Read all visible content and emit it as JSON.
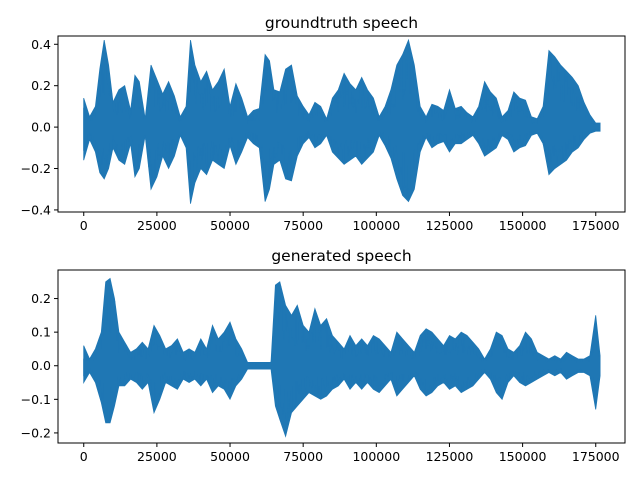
{
  "chart_data": [
    {
      "type": "line",
      "title": "groundtruth speech",
      "xlabel": "",
      "ylabel": "",
      "xlim": [
        -8800,
        185000
      ],
      "ylim": [
        -0.41,
        0.44
      ],
      "x_ticks": [
        0,
        25000,
        50000,
        75000,
        100000,
        125000,
        150000,
        175000
      ],
      "x_tick_labels": [
        "0",
        "25000",
        "50000",
        "75000",
        "100000",
        "125000",
        "150000",
        "175000"
      ],
      "y_ticks": [
        -0.4,
        -0.2,
        0.0,
        0.2,
        0.4
      ],
      "y_tick_labels": [
        "−0.4",
        "−0.2",
        "0.0",
        "0.2",
        "0.4"
      ],
      "grid": false,
      "color": "#1f77b4",
      "series": [
        {
          "x": [
            0,
            2000,
            4000,
            5500,
            7000,
            8500,
            10000,
            12000,
            14000,
            16000,
            17500,
            19000,
            21000,
            23000,
            25000,
            27000,
            29000,
            31000,
            33000,
            35000,
            36500,
            38000,
            40000,
            42000,
            44000,
            46000,
            48000,
            50000,
            52000,
            54000,
            56000,
            58000,
            60000,
            62000,
            63500,
            65000,
            67000,
            69000,
            71000,
            73000,
            75000,
            77000,
            79000,
            81000,
            83000,
            85000,
            87000,
            89000,
            91000,
            93000,
            95000,
            97000,
            99000,
            101000,
            103000,
            105000,
            107000,
            109000,
            111000,
            113000,
            115000,
            117000,
            119000,
            121000,
            123000,
            125000,
            127000,
            129000,
            131000,
            133000,
            135000,
            137000,
            139000,
            141000,
            143000,
            145000,
            147000,
            149000,
            151000,
            153000,
            155000,
            157000,
            159000,
            161000,
            163000,
            165000,
            167000,
            169000,
            171000,
            173000,
            175000,
            176500
          ],
          "upper": [
            0.14,
            0.05,
            0.1,
            0.28,
            0.42,
            0.3,
            0.12,
            0.18,
            0.2,
            0.08,
            0.25,
            0.22,
            0.04,
            0.3,
            0.23,
            0.16,
            0.22,
            0.15,
            0.05,
            0.1,
            0.42,
            0.3,
            0.22,
            0.27,
            0.18,
            0.22,
            0.28,
            0.1,
            0.21,
            0.14,
            0.05,
            0.08,
            0.09,
            0.35,
            0.32,
            0.18,
            0.17,
            0.28,
            0.3,
            0.15,
            0.1,
            0.06,
            0.12,
            0.1,
            0.04,
            0.14,
            0.18,
            0.26,
            0.21,
            0.18,
            0.24,
            0.18,
            0.14,
            0.05,
            0.1,
            0.18,
            0.3,
            0.35,
            0.42,
            0.3,
            0.1,
            0.05,
            0.11,
            0.1,
            0.08,
            0.18,
            0.09,
            0.1,
            0.07,
            0.05,
            0.1,
            0.22,
            0.17,
            0.14,
            0.05,
            0.08,
            0.17,
            0.14,
            0.13,
            0.05,
            0.04,
            0.1,
            0.37,
            0.34,
            0.3,
            0.27,
            0.24,
            0.2,
            0.12,
            0.06,
            0.02,
            0.02
          ],
          "lower": [
            -0.16,
            -0.06,
            -0.12,
            -0.22,
            -0.25,
            -0.2,
            -0.1,
            -0.16,
            -0.18,
            -0.08,
            -0.24,
            -0.2,
            -0.04,
            -0.3,
            -0.24,
            -0.14,
            -0.2,
            -0.14,
            -0.04,
            -0.1,
            -0.37,
            -0.27,
            -0.2,
            -0.23,
            -0.16,
            -0.18,
            -0.2,
            -0.09,
            -0.18,
            -0.12,
            -0.05,
            -0.08,
            -0.1,
            -0.36,
            -0.3,
            -0.18,
            -0.16,
            -0.25,
            -0.26,
            -0.14,
            -0.08,
            -0.05,
            -0.1,
            -0.08,
            -0.04,
            -0.12,
            -0.15,
            -0.18,
            -0.16,
            -0.14,
            -0.18,
            -0.15,
            -0.12,
            -0.04,
            -0.09,
            -0.15,
            -0.25,
            -0.33,
            -0.36,
            -0.3,
            -0.12,
            -0.05,
            -0.1,
            -0.08,
            -0.07,
            -0.12,
            -0.08,
            -0.08,
            -0.06,
            -0.04,
            -0.08,
            -0.14,
            -0.12,
            -0.1,
            -0.04,
            -0.06,
            -0.12,
            -0.1,
            -0.09,
            -0.04,
            -0.03,
            -0.08,
            -0.23,
            -0.2,
            -0.18,
            -0.16,
            -0.12,
            -0.1,
            -0.06,
            -0.03,
            -0.02,
            -0.02
          ]
        }
      ]
    },
    {
      "type": "line",
      "title": "generated speech",
      "xlabel": "",
      "ylabel": "",
      "xlim": [
        -8800,
        185000
      ],
      "ylim": [
        -0.23,
        0.285
      ],
      "x_ticks": [
        0,
        25000,
        50000,
        75000,
        100000,
        125000,
        150000,
        175000
      ],
      "x_tick_labels": [
        "0",
        "25000",
        "50000",
        "75000",
        "100000",
        "125000",
        "150000",
        "175000"
      ],
      "y_ticks": [
        -0.2,
        -0.1,
        0.0,
        0.1,
        0.2
      ],
      "y_tick_labels": [
        "−0.2",
        "−0.1",
        "0.0",
        "0.1",
        "0.2"
      ],
      "grid": false,
      "color": "#1f77b4",
      "series": [
        {
          "x": [
            0,
            2000,
            4000,
            6000,
            7500,
            9000,
            10500,
            12000,
            14000,
            16000,
            18000,
            20000,
            22000,
            24000,
            26000,
            28000,
            30000,
            32000,
            34000,
            36000,
            38000,
            40000,
            42000,
            44000,
            46000,
            48000,
            50000,
            52000,
            54000,
            56000,
            58000,
            60000,
            62000,
            64000,
            65500,
            67000,
            69000,
            71000,
            73000,
            75000,
            77000,
            79000,
            81000,
            83000,
            85000,
            87000,
            89000,
            91000,
            93000,
            95000,
            97000,
            99000,
            101000,
            103000,
            105000,
            107000,
            109000,
            111000,
            113000,
            115000,
            117000,
            119000,
            121000,
            123000,
            125000,
            127000,
            129000,
            131000,
            133000,
            135000,
            137000,
            139000,
            141000,
            143000,
            145000,
            147000,
            149000,
            151000,
            153000,
            155000,
            157000,
            159000,
            161000,
            163000,
            165000,
            167000,
            169000,
            171000,
            173000,
            175000,
            176500
          ],
          "upper": [
            0.06,
            0.02,
            0.05,
            0.1,
            0.25,
            0.26,
            0.2,
            0.1,
            0.07,
            0.04,
            0.05,
            0.07,
            0.05,
            0.12,
            0.09,
            0.05,
            0.06,
            0.08,
            0.04,
            0.05,
            0.04,
            0.08,
            0.05,
            0.12,
            0.08,
            0.1,
            0.13,
            0.08,
            0.05,
            0.01,
            0.01,
            0.01,
            0.01,
            0.01,
            0.24,
            0.25,
            0.18,
            0.15,
            0.18,
            0.12,
            0.1,
            0.17,
            0.12,
            0.14,
            0.09,
            0.07,
            0.05,
            0.09,
            0.06,
            0.08,
            0.06,
            0.09,
            0.08,
            0.06,
            0.04,
            0.1,
            0.08,
            0.06,
            0.04,
            0.09,
            0.11,
            0.1,
            0.08,
            0.06,
            0.09,
            0.08,
            0.1,
            0.09,
            0.07,
            0.05,
            0.02,
            0.05,
            0.1,
            0.09,
            0.05,
            0.04,
            0.06,
            0.1,
            0.08,
            0.04,
            0.03,
            0.02,
            0.03,
            0.02,
            0.04,
            0.03,
            0.02,
            0.02,
            0.03,
            0.15,
            0.03
          ],
          "lower": [
            -0.05,
            -0.02,
            -0.05,
            -0.11,
            -0.17,
            -0.17,
            -0.12,
            -0.06,
            -0.06,
            -0.04,
            -0.05,
            -0.07,
            -0.05,
            -0.14,
            -0.1,
            -0.05,
            -0.06,
            -0.07,
            -0.04,
            -0.05,
            -0.04,
            -0.06,
            -0.04,
            -0.08,
            -0.06,
            -0.07,
            -0.1,
            -0.06,
            -0.04,
            -0.01,
            -0.01,
            -0.01,
            -0.01,
            -0.01,
            -0.12,
            -0.16,
            -0.21,
            -0.14,
            -0.12,
            -0.1,
            -0.08,
            -0.09,
            -0.1,
            -0.09,
            -0.07,
            -0.06,
            -0.04,
            -0.07,
            -0.05,
            -0.07,
            -0.05,
            -0.07,
            -0.08,
            -0.06,
            -0.04,
            -0.09,
            -0.07,
            -0.05,
            -0.03,
            -0.07,
            -0.09,
            -0.08,
            -0.06,
            -0.05,
            -0.07,
            -0.06,
            -0.08,
            -0.07,
            -0.06,
            -0.04,
            -0.02,
            -0.04,
            -0.08,
            -0.1,
            -0.05,
            -0.03,
            -0.05,
            -0.06,
            -0.05,
            -0.04,
            -0.03,
            -0.02,
            -0.03,
            -0.02,
            -0.04,
            -0.03,
            -0.02,
            -0.02,
            -0.03,
            -0.13,
            -0.03
          ]
        }
      ]
    }
  ]
}
